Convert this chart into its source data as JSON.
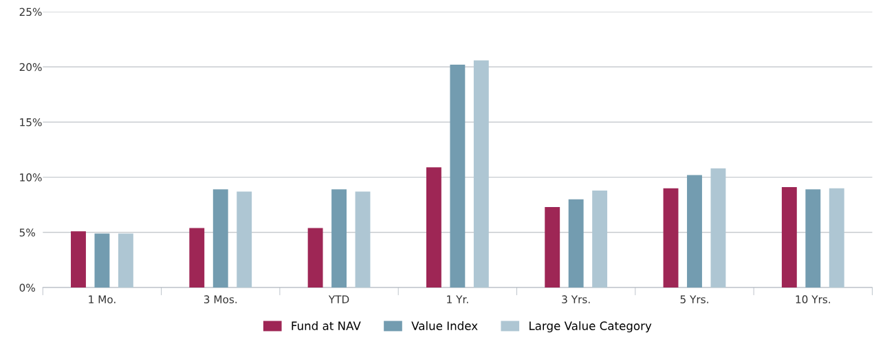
{
  "chart_data": {
    "type": "bar",
    "categories": [
      "1 Mo.",
      "3 Mos.",
      "YTD",
      "1 Yr.",
      "3 Yrs.",
      "5 Yrs.",
      "10 Yrs."
    ],
    "series": [
      {
        "name": "Fund at NAV",
        "color": "#9e2655",
        "values": [
          5.1,
          5.4,
          5.4,
          10.9,
          7.3,
          9.0,
          9.1
        ]
      },
      {
        "name": "Value Index",
        "color": "#739cb0",
        "values": [
          4.9,
          8.9,
          8.9,
          20.2,
          8.0,
          10.2,
          8.9
        ]
      },
      {
        "name": "Large Value Category",
        "color": "#aec6d3",
        "values": [
          4.9,
          8.7,
          8.7,
          20.6,
          8.8,
          10.8,
          9.0
        ]
      }
    ],
    "ylim": [
      0,
      25
    ],
    "yticks": [
      {
        "value": 0,
        "label": "0%"
      },
      {
        "value": 5,
        "label": "5%"
      },
      {
        "value": 10,
        "label": "10%"
      },
      {
        "value": 15,
        "label": "15%"
      },
      {
        "value": 20,
        "label": "20%"
      },
      {
        "value": 25,
        "label": "25%"
      }
    ],
    "grid": "y",
    "legend": "bottom"
  }
}
